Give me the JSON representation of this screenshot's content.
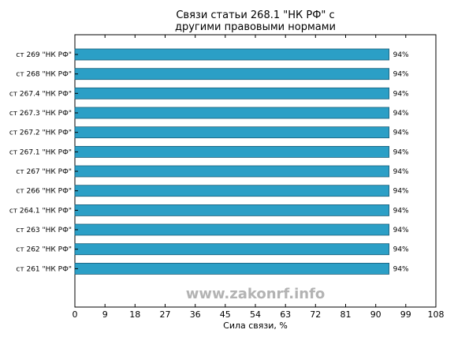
{
  "chart_data": {
    "type": "bar",
    "orientation": "horizontal",
    "title_lines": [
      "Связи статьи 268.1 \"НК РФ\" с",
      "другими правовыми нормами"
    ],
    "categories": [
      "ст 269 \"НК РФ\"",
      "ст 268 \"НК РФ\"",
      "ст 267.4 \"НК РФ\"",
      "ст 267.3 \"НК РФ\"",
      "ст 267.2 \"НК РФ\"",
      "ст 267.1 \"НК РФ\"",
      "ст 267 \"НК РФ\"",
      "ст 266 \"НК РФ\"",
      "ст 264.1 \"НК РФ\"",
      "ст 263 \"НК РФ\"",
      "ст 262 \"НК РФ\"",
      "ст 261 \"НК РФ\""
    ],
    "values": [
      94,
      94,
      94,
      94,
      94,
      94,
      94,
      94,
      94,
      94,
      94,
      94
    ],
    "value_labels": [
      "94%",
      "94%",
      "94%",
      "94%",
      "94%",
      "94%",
      "94%",
      "94%",
      "94%",
      "94%",
      "94%",
      "94%"
    ],
    "xlabel": "Сила связи, %",
    "ylabel": "",
    "xlim": [
      0,
      108
    ],
    "xticks": [
      0,
      9,
      18,
      27,
      36,
      45,
      54,
      63,
      72,
      81,
      90,
      99,
      108
    ],
    "grid": false,
    "legend": "none",
    "bar_color": "#2b9fc6",
    "bar_edge_color": "#1a5e78"
  },
  "watermark": "www.zakonrf.info"
}
